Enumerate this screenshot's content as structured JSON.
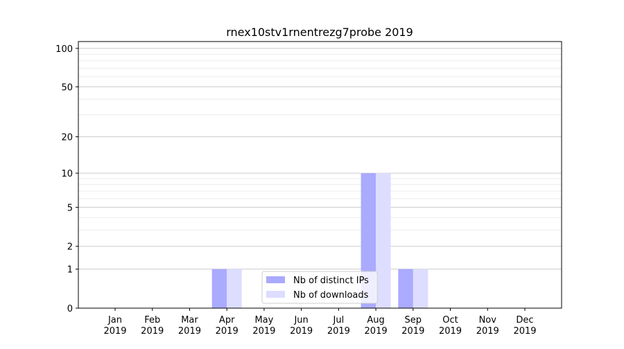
{
  "chart_data": {
    "type": "bar",
    "title": "rnex10stv1rnentrezg7probe 2019",
    "xlabel": "",
    "ylabel": "",
    "yscale": "log(1+y)",
    "ylim": [
      0,
      113
    ],
    "yticks": [
      0,
      1,
      2,
      5,
      10,
      20,
      50,
      100
    ],
    "yminor": [
      3,
      4,
      6,
      7,
      8,
      9,
      30,
      40,
      60,
      70,
      80,
      90
    ],
    "grid": true,
    "legend_position": "bottom-center",
    "categories": [
      "Jan\n2019",
      "Feb\n2019",
      "Mar\n2019",
      "Apr\n2019",
      "May\n2019",
      "Jun\n2019",
      "Jul\n2019",
      "Aug\n2019",
      "Sep\n2019",
      "Oct\n2019",
      "Nov\n2019",
      "Dec\n2019"
    ],
    "series": [
      {
        "name": "Nb of distinct IPs",
        "color": "#aaaaff",
        "values": [
          0,
          0,
          0,
          1,
          0,
          0,
          0,
          10,
          1,
          0,
          0,
          0
        ]
      },
      {
        "name": "Nb of downloads",
        "color": "#ddddff",
        "values": [
          0,
          0,
          0,
          1,
          0,
          0,
          0,
          10,
          1,
          0,
          0,
          0
        ]
      }
    ]
  }
}
